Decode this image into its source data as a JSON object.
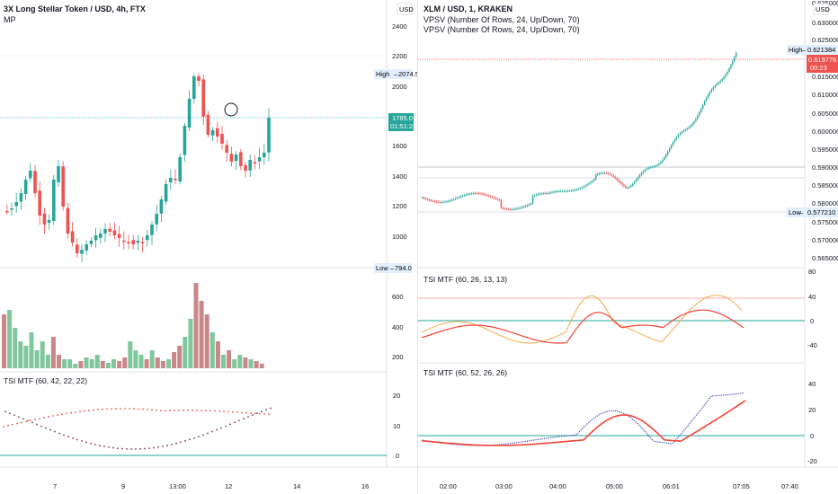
{
  "left": {
    "title": "3X Long Stellar Token / USD, 4h, FTX",
    "indicator": "MP",
    "currency": "USD",
    "price_ticks": [
      "2400",
      "2200",
      "2000",
      "1800",
      "1600",
      "1400",
      "1200",
      "1000"
    ],
    "high_label": "High",
    "high_value": "2074.5",
    "low_label": "Low",
    "low_value": "794.0",
    "last_price": "1785.0",
    "countdown": "01:51:23",
    "volume_ticks": [
      "600",
      "400",
      "200"
    ],
    "tsi_title": "TSI MTF (60, 42, 22, 22)",
    "tsi_ticks": [
      "20",
      "10",
      "0"
    ],
    "time_ticks": [
      "7",
      "9",
      "13:00",
      "12",
      "14",
      "16"
    ],
    "colors": {
      "up": "#26a69a",
      "down": "#ef5350",
      "vol_up": "#80c79d",
      "vol_down": "#c9878a",
      "price_line": "#3fb5c7"
    }
  },
  "right": {
    "title": "XLM / USD, 1, KRAKEN",
    "vpsv_1": "VPSV (Number Of Rows, 24, Up/Down, 70)",
    "vpsv_2": "VPSV (Number Of Rows, 24, Up/Down, 70)",
    "currency": "USD",
    "price_ticks": [
      "0.630000",
      "0.625000",
      "0.620000",
      "0.615000",
      "0.610000",
      "0.605000",
      "0.600000",
      "0.595000",
      "0.590000",
      "0.585000",
      "0.580000",
      "0.575000",
      "0.570000",
      "0.565000"
    ],
    "top_cut": "0.635000",
    "high_label": "High",
    "high_value": "0.621384",
    "last_price": "0.619776",
    "countdown": "00:23",
    "low_label": "Low",
    "low_value": "0.577210",
    "tsi1_title": "TSI MTF (60, 26, 13, 13)",
    "tsi1_ticks": [
      "80",
      "40",
      "0",
      "-40"
    ],
    "tsi2_title": "TSI MTF (60, 52, 26, 26)",
    "tsi2_ticks": [
      "40",
      "20",
      "0",
      "-20"
    ],
    "time_ticks": [
      "02:00",
      "03:00",
      "04:00",
      "05:00",
      "06:01",
      "07:05",
      "07:40"
    ],
    "colors": {
      "up": "#26a69a",
      "down": "#ef5350",
      "tsi_orange": "#f7a94a",
      "tsi_red": "#f44336",
      "tsi_blue": "#3949ab",
      "zero": "#26a69a"
    }
  }
}
